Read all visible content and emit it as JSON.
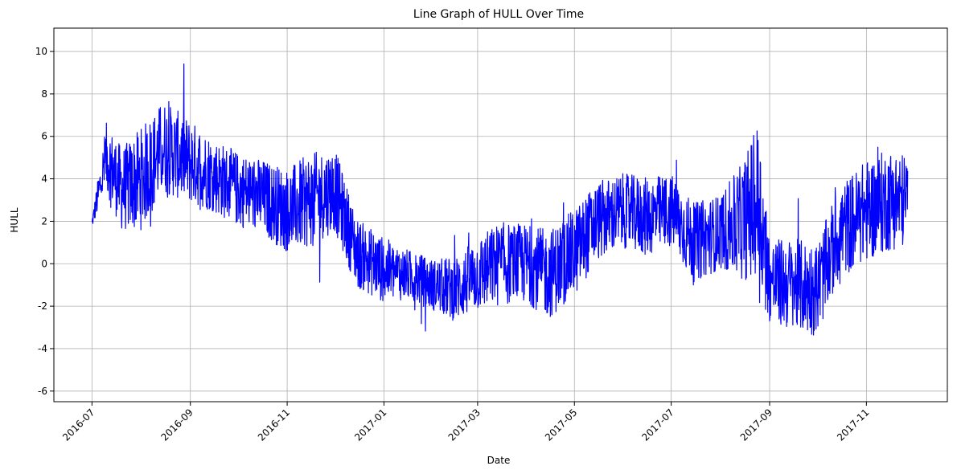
{
  "chart_data": {
    "type": "line",
    "title": "Line Graph of HULL Over Time",
    "xlabel": "Date",
    "ylabel": "HULL",
    "xlim": [
      "2016-06-07",
      "2017-12-22"
    ],
    "ylim": [
      -6.5,
      11.1
    ],
    "x_ticks": [
      "2016-07",
      "2016-09",
      "2016-11",
      "2017-01",
      "2017-03",
      "2017-05",
      "2017-07",
      "2017-09",
      "2017-11"
    ],
    "y_ticks": [
      -6,
      -4,
      -2,
      0,
      2,
      4,
      6,
      8,
      10
    ],
    "grid": true,
    "legend": "none",
    "series": [
      {
        "color": "#0000ff",
        "x": [
          "2016-07-01",
          "2016-07-10",
          "2016-07-20",
          "2016-08-01",
          "2016-08-15",
          "2016-09-01",
          "2016-09-15",
          "2016-10-01",
          "2016-10-15",
          "2016-11-01",
          "2016-11-15",
          "2016-12-01",
          "2016-12-15",
          "2017-01-01",
          "2017-01-15",
          "2017-02-01",
          "2017-02-15",
          "2017-03-01",
          "2017-03-15",
          "2017-04-01",
          "2017-04-15",
          "2017-05-01",
          "2017-05-15",
          "2017-06-01",
          "2017-06-15",
          "2017-07-01",
          "2017-07-15",
          "2017-08-01",
          "2017-08-15",
          "2017-08-25",
          "2017-09-01",
          "2017-09-15",
          "2017-10-01",
          "2017-10-15",
          "2017-11-01",
          "2017-11-15",
          "2017-11-27"
        ],
        "y": [
          1.9,
          5.0,
          3.5,
          4.0,
          5.5,
          4.8,
          4.2,
          3.5,
          3.2,
          2.5,
          3.0,
          3.5,
          0.5,
          -0.3,
          -0.5,
          -1.0,
          -1.2,
          -0.5,
          0.0,
          0.0,
          -0.5,
          0.5,
          2.0,
          2.5,
          2.2,
          2.5,
          1.0,
          1.5,
          2.0,
          3.0,
          -0.8,
          -1.0,
          -1.2,
          1.5,
          2.5,
          3.0,
          3.0
        ],
        "amplitude": [
          0.2,
          1.5,
          1.8,
          2.2,
          2.0,
          1.8,
          1.6,
          1.6,
          1.6,
          1.8,
          2.0,
          1.8,
          1.5,
          1.4,
          1.1,
          1.1,
          1.4,
          1.6,
          1.8,
          1.7,
          1.9,
          1.9,
          1.7,
          1.6,
          1.7,
          1.6,
          1.7,
          1.6,
          2.5,
          3.5,
          1.8,
          2.0,
          2.0,
          2.0,
          2.2,
          2.2,
          2.0
        ]
      }
    ]
  }
}
